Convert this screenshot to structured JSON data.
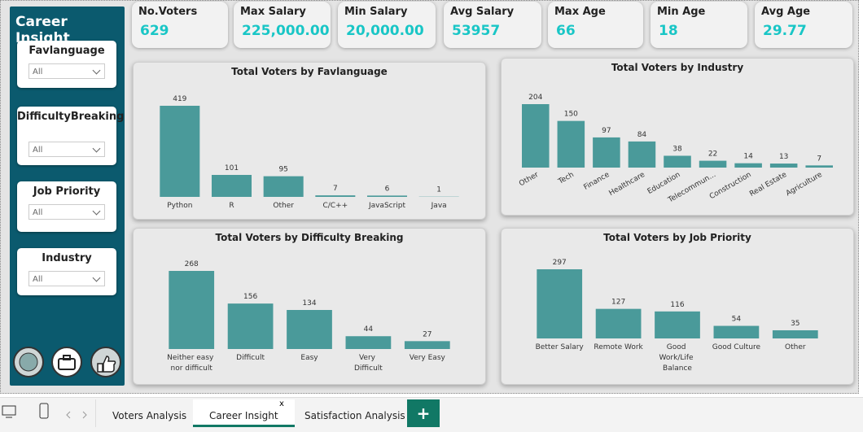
{
  "sidebar": {
    "title": "Career Insight",
    "slicers": [
      {
        "label": "Favlanguage",
        "value": "All"
      },
      {
        "label": "DifficultyBreaking",
        "value": "All"
      },
      {
        "label": "Job Priority",
        "value": "All"
      },
      {
        "label": "Industry",
        "value": "All"
      }
    ]
  },
  "kpis": [
    {
      "label": "No.Voters",
      "value": 629
    },
    {
      "label": "Max Salary",
      "value": {
        "value": 225000,
        "label": "225,000.00"
      }
    },
    {
      "label": "Min Salary",
      "value": {
        "value": 20000,
        "label": "20,000.00"
      }
    },
    {
      "label": "Avg Salary",
      "value": 53957
    },
    {
      "label": "Max Age",
      "value": 66
    },
    {
      "label": "Min Age",
      "value": 18
    },
    {
      "label": "Avg Age",
      "value": 29.77
    }
  ],
  "chart_data": [
    {
      "type": "bar",
      "title": "Total Voters by Favlanguage",
      "categories": [
        "Python",
        "R",
        "Other",
        "C/C++",
        "JavaScript",
        "Java"
      ],
      "values": [
        419,
        101,
        95,
        7,
        6,
        1
      ],
      "color": "#4a9a9a"
    },
    {
      "type": "bar",
      "title": "Total Voters by Industry",
      "categories": [
        "Other",
        "Tech",
        "Finance",
        "Healthcare",
        "Education",
        "Telecommun...",
        "Construction",
        "Real Estate",
        "Agriculture"
      ],
      "values": [
        204,
        150,
        97,
        84,
        38,
        22,
        14,
        13,
        7
      ],
      "color": "#4a9a9a"
    },
    {
      "type": "bar",
      "title": "Total Voters by Difficulty Breaking",
      "categories": [
        "Neither easy nor difficult",
        "Difficult",
        "Easy",
        "Very Difficult",
        "Very Easy"
      ],
      "values": [
        268,
        156,
        134,
        44,
        27
      ],
      "color": "#4a9a9a"
    },
    {
      "type": "bar",
      "title": "Total Voters by Job Priority",
      "categories": [
        "Better Salary",
        "Remote Work",
        "Good Work/Life Balance",
        "Good Culture",
        "Other"
      ],
      "values": [
        297,
        127,
        116,
        54,
        35
      ],
      "color": "#4a9a9a"
    }
  ],
  "tabs": [
    "Voters Analysis",
    "Career Insight",
    "Satisfaction Analysis"
  ]
}
